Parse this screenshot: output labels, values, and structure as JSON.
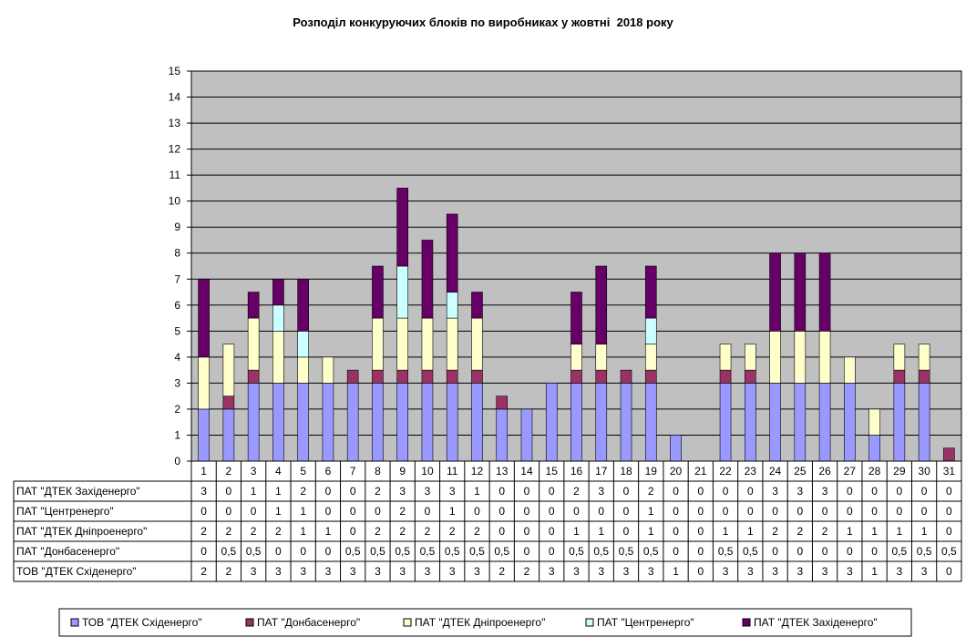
{
  "chart_data": {
    "type": "bar",
    "stacked": true,
    "title": "Розподіл конкуруючих блоків по виробниках у жовтні  2018 року",
    "categories": [
      "1",
      "2",
      "3",
      "4",
      "5",
      "6",
      "7",
      "8",
      "9",
      "10",
      "11",
      "12",
      "13",
      "14",
      "15",
      "16",
      "17",
      "18",
      "19",
      "20",
      "21",
      "22",
      "23",
      "24",
      "25",
      "26",
      "27",
      "28",
      "29",
      "30",
      "31"
    ],
    "ylim": [
      0,
      15
    ],
    "yticks": [
      0,
      1,
      2,
      3,
      4,
      5,
      6,
      7,
      8,
      9,
      10,
      11,
      12,
      13,
      14,
      15
    ],
    "grid": true,
    "plot_background": "#C0C0C0",
    "data_table": true,
    "legend_position": "bottom",
    "series": [
      {
        "name": "ТОВ \"ДТЕК Східенерго\"",
        "color": "#9999FF",
        "values": [
          2,
          2,
          3,
          3,
          3,
          3,
          3,
          3,
          3,
          3,
          3,
          3,
          2,
          2,
          3,
          3,
          3,
          3,
          3,
          1,
          0,
          3,
          3,
          3,
          3,
          3,
          3,
          1,
          3,
          3,
          0
        ]
      },
      {
        "name": "ПАТ \"Донбасенерго\"",
        "color": "#993366",
        "values": [
          0,
          0.5,
          0.5,
          0,
          0,
          0,
          0.5,
          0.5,
          0.5,
          0.5,
          0.5,
          0.5,
          0.5,
          0,
          0,
          0.5,
          0.5,
          0.5,
          0.5,
          0,
          0,
          0.5,
          0.5,
          0,
          0,
          0,
          0,
          0,
          0.5,
          0.5,
          0.5
        ]
      },
      {
        "name": "ПАТ \"ДТЕК Дніпроенерго\"",
        "color": "#FFFFCC",
        "values": [
          2,
          2,
          2,
          2,
          1,
          1,
          0,
          2,
          2,
          2,
          2,
          2,
          0,
          0,
          0,
          1,
          1,
          0,
          1,
          0,
          0,
          1,
          1,
          2,
          2,
          2,
          1,
          1,
          1,
          1,
          0
        ]
      },
      {
        "name": "ПАТ \"Центренерго\"",
        "color": "#CCFFFF",
        "values": [
          0,
          0,
          0,
          1,
          1,
          0,
          0,
          0,
          2,
          0,
          1,
          0,
          0,
          0,
          0,
          0,
          0,
          0,
          1,
          0,
          0,
          0,
          0,
          0,
          0,
          0,
          0,
          0,
          0,
          0,
          0
        ]
      },
      {
        "name": "ПАТ \"ДТЕК Західенерго\"",
        "color": "#660066",
        "values": [
          3,
          0,
          1,
          1,
          2,
          0,
          0,
          2,
          3,
          3,
          3,
          1,
          0,
          0,
          0,
          2,
          3,
          0,
          2,
          0,
          0,
          0,
          0,
          3,
          3,
          3,
          0,
          0,
          0,
          0,
          0
        ]
      }
    ]
  }
}
